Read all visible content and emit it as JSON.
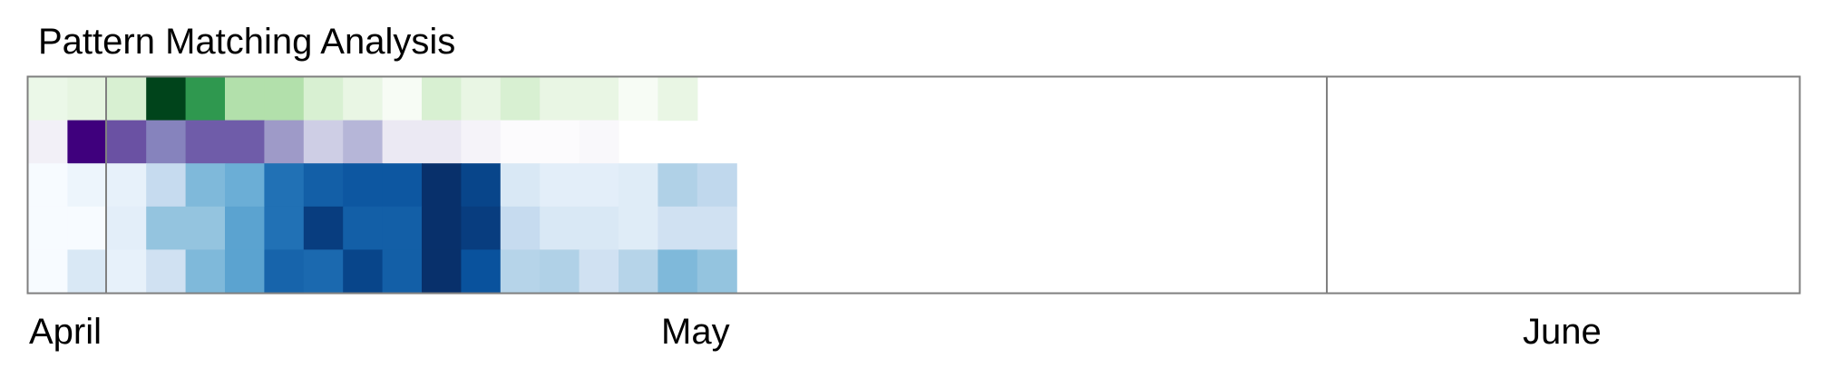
{
  "chart_data": {
    "type": "heatmap",
    "title": "Pattern Matching Analysis",
    "x_axis_labels": [
      "April",
      "May",
      "June"
    ],
    "rows": 5,
    "days_shown": 45,
    "colormaps": [
      "Greens",
      "Purples",
      "Blues",
      "Blues",
      "Blues"
    ],
    "values": [
      [
        0.08,
        0.12,
        0.18,
        1.0,
        0.7,
        0.32,
        0.32,
        0.18,
        0.1,
        0.0,
        0.18,
        0.1,
        0.18,
        0.1,
        0.1,
        0.0,
        0.1,
        null
      ],
      [
        0.1,
        1.0,
        0.75,
        0.6,
        0.72,
        0.72,
        0.5,
        0.3,
        0.4,
        0.15,
        0.15,
        0.07,
        0.0,
        0.0,
        0.03,
        null,
        null,
        null
      ],
      [
        0.0,
        0.05,
        0.08,
        0.25,
        0.45,
        0.5,
        0.75,
        0.82,
        0.85,
        0.85,
        1.0,
        0.92,
        0.15,
        0.1,
        0.1,
        0.12,
        0.32,
        0.27
      ],
      [
        0.0,
        0.0,
        0.1,
        0.4,
        0.4,
        0.55,
        0.75,
        0.95,
        0.82,
        0.82,
        1.0,
        0.95,
        0.25,
        0.15,
        0.15,
        0.12,
        0.2,
        0.2
      ],
      [
        0.0,
        0.15,
        0.08,
        0.2,
        0.45,
        0.55,
        0.8,
        0.78,
        0.92,
        0.82,
        1.0,
        0.87,
        0.3,
        0.32,
        0.2,
        0.3,
        0.45,
        0.4
      ]
    ]
  },
  "colors": {
    "frame": "#7f7f7f",
    "month_divider": "#808080",
    "Greens": [
      "#f7fcf5",
      "#e5f5e0",
      "#c7e9c0",
      "#a1d99b",
      "#74c476",
      "#41ab5d",
      "#238b45",
      "#006d2c",
      "#00441b"
    ],
    "Purples": [
      "#fcfbfd",
      "#efedf5",
      "#dadaeb",
      "#bcbddc",
      "#9e9ac8",
      "#807dba",
      "#6a51a3",
      "#54278f",
      "#3f007d"
    ],
    "Blues": [
      "#f7fbff",
      "#deebf7",
      "#c6dbef",
      "#9ecae1",
      "#6baed6",
      "#4292c6",
      "#2171b5",
      "#08519c",
      "#08306b"
    ]
  }
}
